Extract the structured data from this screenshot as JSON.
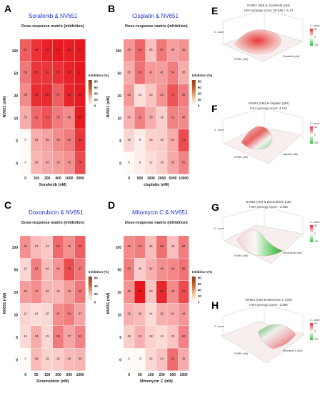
{
  "chart_data": [
    {
      "panel": "A",
      "type": "heatmap",
      "title": "Sorafenib & NV651",
      "subtitle": "Dose-response matrix (inhibition)",
      "xlabel": "Sorafenib (nM)",
      "ylabel": "NV651 (nM)",
      "x": [
        "0",
        "100",
        "200",
        "400",
        "1000",
        "2000"
      ],
      "y": [
        "0",
        "5",
        "10",
        "20",
        "50",
        "100"
      ],
      "legend_title": "Inhibition (%)",
      "legend_ticks": [
        "80",
        "60",
        "40",
        "20",
        "0"
      ],
      "values": [
        [
          0,
          29,
          35,
          39,
          45,
          76
        ],
        [
          0,
          33,
          38,
          48,
          55,
          85
        ],
        [
          33,
          62,
          72,
          55,
          48,
          96
        ],
        [
          48,
          88,
          89,
          67,
          92,
          96
        ],
        [
          56,
          85,
          84,
          87,
          93,
          97
        ],
        [
          67,
          86,
          93,
          97,
          95,
          97
        ]
      ]
    },
    {
      "panel": "B",
      "type": "heatmap",
      "title": "Cisplatin & NV651",
      "subtitle": "Dose-response matrix (inhibition)",
      "xlabel": "cisplatin (nM)",
      "ylabel": "NV651 (nM)",
      "x": [
        "0",
        "500",
        "1000",
        "2000",
        "5000",
        "10000"
      ],
      "y": [
        "0",
        "5",
        "10",
        "20",
        "50",
        "100"
      ],
      "legend_title": "Inhibition (%)",
      "legend_ticks": [
        "80",
        "60",
        "40",
        "20",
        "0"
      ],
      "values": [
        [
          0,
          6,
          12,
          19,
          35,
          51
        ],
        [
          15,
          6,
          18,
          19,
          34,
          75
        ],
        [
          30,
          52,
          33,
          19,
          51,
          48
        ],
        [
          42,
          12,
          23,
          44,
          72,
          54
        ],
        [
          33,
          59,
          42,
          41,
          54,
          33
        ],
        [
          44,
          64,
          25,
          57,
          39,
          45
        ]
      ]
    },
    {
      "panel": "C",
      "type": "heatmap",
      "title": "Doxorubicin & NV651",
      "subtitle": "Dose-response matrix (inhibition)",
      "xlabel": "Doxorubicin (nM)",
      "ylabel": "NV651 (nM)",
      "x": [
        "0",
        "50",
        "100",
        "200",
        "500",
        "1000"
      ],
      "y": [
        "0",
        "5",
        "10",
        "20",
        "50",
        "100"
      ],
      "legend_title": "Inhibition (%)",
      "legend_ticks": [
        "60",
        "40",
        "20",
        "0"
      ],
      "values": [
        [
          0,
          28,
          18,
          20,
          28,
          30
        ],
        [
          14,
          34,
          15,
          55,
          37,
          51
        ],
        [
          17,
          13,
          15,
          47,
          54,
          37
        ],
        [
          40,
          47,
          29,
          29,
          40,
          56
        ],
        [
          15,
          53,
          26,
          44,
          75,
          57
        ],
        [
          46,
          27,
          22,
          63,
          46,
          66
        ]
      ]
    },
    {
      "panel": "D",
      "type": "heatmap",
      "title": "Mitomycin C & NV651",
      "subtitle": "Dose-response matrix (inhibition)",
      "xlabel": "Mitomycin C (nM)",
      "ylabel": "NV651 (nM)",
      "x": [
        "0",
        "50",
        "100",
        "200",
        "500",
        "1000"
      ],
      "y": [
        "0",
        "5",
        "10",
        "20",
        "50",
        "100"
      ],
      "legend_title": "Inhibition (%)",
      "legend_ticks": [
        "80",
        "60",
        "40",
        "20",
        "0"
      ],
      "values": [
        [
          0,
          -5,
          15,
          24,
          61,
          34
        ],
        [
          19,
          32,
          18,
          14,
          23,
          52
        ],
        [
          32,
          28,
          14,
          32,
          34,
          44
        ],
        [
          45,
          98,
          23,
          91,
          48,
          75
        ],
        [
          53,
          20,
          32,
          46,
          49,
          58
        ],
        [
          48,
          54,
          26,
          60,
          25,
          54
        ]
      ]
    },
    {
      "panel": "E",
      "type": "surface",
      "title": "NV651 (nM) & Sorafenib (nM)",
      "subtitle": "HSA synergy score: 26.645 +-1.12",
      "xlabel": "Sorafenib (nM)",
      "ylabel": "NV651 (nM)",
      "zlabel": "δ - score",
      "legend_title": "δ - score",
      "legend_ticks": [
        "50",
        "0",
        "-50"
      ]
    },
    {
      "panel": "F",
      "type": "surface",
      "title": "NV651 (nM) & cisplatin (nM)",
      "subtitle": "HSA synergy score: 4.119",
      "xlabel": "cisplatin (nM)",
      "ylabel": "NV651 (nM)",
      "zlabel": "δ - score",
      "legend_title": "δ - score",
      "legend_ticks": [
        "50",
        "0",
        "-50"
      ]
    },
    {
      "panel": "G",
      "type": "surface",
      "title": "NV651 (nM) & Doxorubicin (nM)",
      "subtitle": "HSA synergy score: -2.455",
      "xlabel": "Doxorubicin (nM)",
      "ylabel": "NV651 (nM)",
      "zlabel": "δ - score",
      "legend_title": "δ - score",
      "legend_ticks": [
        "50",
        "0",
        "-50"
      ]
    },
    {
      "panel": "H",
      "type": "surface",
      "title": "NV651 (nM) & Mitomycin C (nM)",
      "subtitle": "HSA synergy score: -1.695",
      "xlabel": "Mitomycin C (nM)",
      "ylabel": "NV651 (nM)",
      "zlabel": "δ - score",
      "legend_title": "δ - score",
      "legend_ticks": [
        "50",
        "0",
        "-50"
      ]
    }
  ]
}
